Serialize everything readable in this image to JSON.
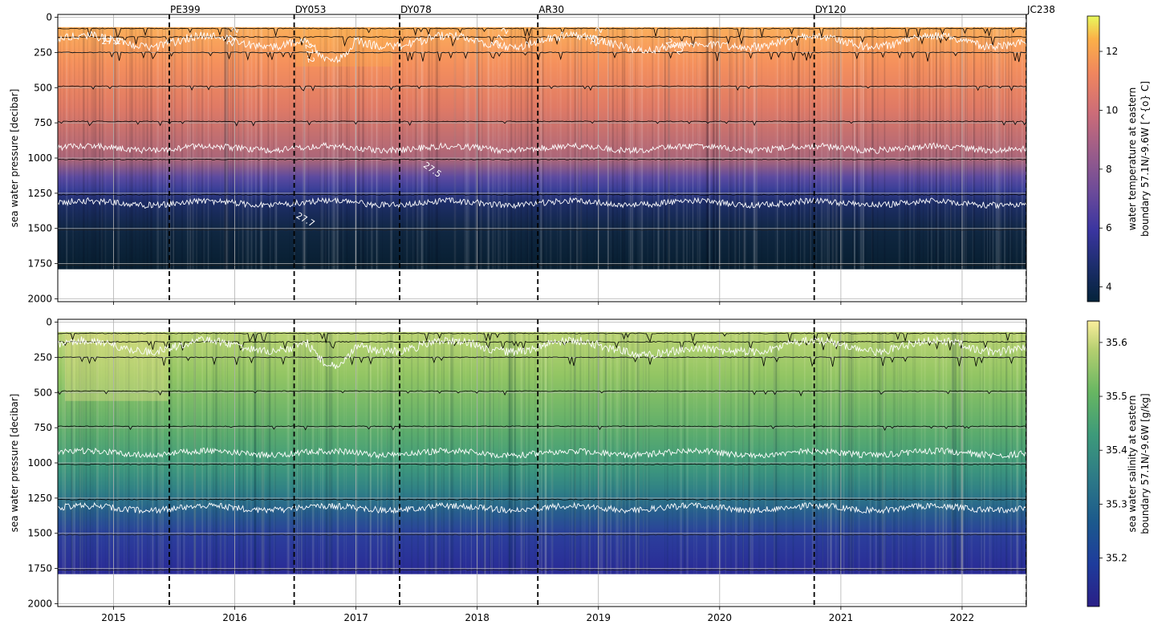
{
  "chart_data": [
    {
      "type": "heatmap",
      "panel": "top",
      "title": "",
      "xlabel": "",
      "ylabel": "sea water pressure [decibar]",
      "x_ticks": [
        "2015",
        "2016",
        "2017",
        "2018",
        "2019",
        "2020",
        "2021",
        "2022"
      ],
      "x_tick_values": [
        2015.0,
        2016.0,
        2017.0,
        2018.0,
        2019.0,
        2020.0,
        2021.0,
        2022.0
      ],
      "xlim": [
        2014.54,
        2022.53
      ],
      "y_ticks": [
        "0",
        "250",
        "500",
        "750",
        "1000",
        "1250",
        "1500",
        "1750",
        "2000"
      ],
      "y_tick_values": [
        0,
        250,
        500,
        750,
        1000,
        1250,
        1500,
        1750,
        2000
      ],
      "ylim": [
        2020,
        -20
      ],
      "y_inverted": true,
      "grid": true,
      "data_pressure_range": [
        70,
        1790
      ],
      "colorbar": {
        "label_line1": "water temperature at eastern",
        "label_line2": "boundary 57.1N/-9.6W [^{o} C]",
        "ticks": [
          "4",
          "6",
          "8",
          "10",
          "12"
        ],
        "tick_values": [
          4,
          6,
          8,
          10,
          12
        ],
        "range": [
          3.5,
          13.2
        ],
        "colormap": "thermal"
      },
      "temperature_profile": {
        "pressure": [
          70,
          300,
          600,
          900,
          1100,
          1250,
          1400,
          1600,
          1790
        ],
        "value": [
          11.3,
          10.6,
          9.5,
          7.7,
          6.6,
          5.4,
          4.6,
          4.0,
          3.7
        ]
      },
      "cruises": [
        {
          "name": "PE399",
          "x": 2015.46
        },
        {
          "name": "DY053",
          "x": 2016.49
        },
        {
          "name": "DY078",
          "x": 2017.36
        },
        {
          "name": "AR30",
          "x": 2018.5
        },
        {
          "name": "DY120",
          "x": 2020.78
        },
        {
          "name": "JC238",
          "x": 2022.53
        }
      ],
      "isopycnals": [
        {
          "label": "27.2",
          "base_pressure": 170
        },
        {
          "label": "27.5",
          "base_pressure": 930
        },
        {
          "label": "27.7",
          "base_pressure": 1320
        }
      ],
      "contour_labels": [
        "27.2",
        "27.2",
        "27.2",
        "27.2",
        "27.2",
        "27.2",
        "27.5",
        "27.7"
      ],
      "instrument_depths": [
        80,
        140,
        250,
        490,
        740,
        1010,
        1260,
        1510,
        1760
      ]
    },
    {
      "type": "heatmap",
      "panel": "bottom",
      "title": "",
      "xlabel": "",
      "ylabel": "sea water pressure [decibar]",
      "x_ticks": [
        "2015",
        "2016",
        "2017",
        "2018",
        "2019",
        "2020",
        "2021",
        "2022"
      ],
      "x_tick_values": [
        2015.0,
        2016.0,
        2017.0,
        2018.0,
        2019.0,
        2020.0,
        2021.0,
        2022.0
      ],
      "xlim": [
        2014.54,
        2022.53
      ],
      "y_ticks": [
        "0",
        "250",
        "500",
        "750",
        "1000",
        "1250",
        "1500",
        "1750",
        "2000"
      ],
      "y_tick_values": [
        0,
        250,
        500,
        750,
        1000,
        1250,
        1500,
        1750,
        2000
      ],
      "ylim": [
        2020,
        -20
      ],
      "y_inverted": true,
      "grid": true,
      "data_pressure_range": [
        70,
        1790
      ],
      "colorbar": {
        "label_line1": "sea water salinity at eastern",
        "label_line2": "boundary 57.1N/-9.6W [g/kg]",
        "ticks": [
          "35.2",
          "35.3",
          "35.4",
          "35.5",
          "35.6"
        ],
        "tick_values": [
          35.2,
          35.3,
          35.4,
          35.5,
          35.6
        ],
        "range": [
          35.11,
          35.64
        ],
        "colormap": "haline"
      },
      "salinity_profile": {
        "pressure": [
          70,
          300,
          600,
          900,
          1100,
          1300,
          1500,
          1790
        ],
        "value": [
          35.52,
          35.5,
          35.47,
          35.41,
          35.36,
          35.28,
          35.22,
          35.16
        ]
      },
      "cruises": [
        {
          "name": "PE399",
          "x": 2015.46
        },
        {
          "name": "DY053",
          "x": 2016.49
        },
        {
          "name": "DY078",
          "x": 2017.36
        },
        {
          "name": "AR30",
          "x": 2018.5
        },
        {
          "name": "DY120",
          "x": 2020.78
        },
        {
          "name": "JC238",
          "x": 2022.53
        }
      ],
      "isopycnals": [
        {
          "label": "27.2",
          "base_pressure": 170
        },
        {
          "label": "27.5",
          "base_pressure": 930
        },
        {
          "label": "27.7",
          "base_pressure": 1320
        }
      ],
      "instrument_depths": [
        80,
        140,
        250,
        490,
        740,
        1010,
        1260,
        1510,
        1760
      ]
    }
  ]
}
